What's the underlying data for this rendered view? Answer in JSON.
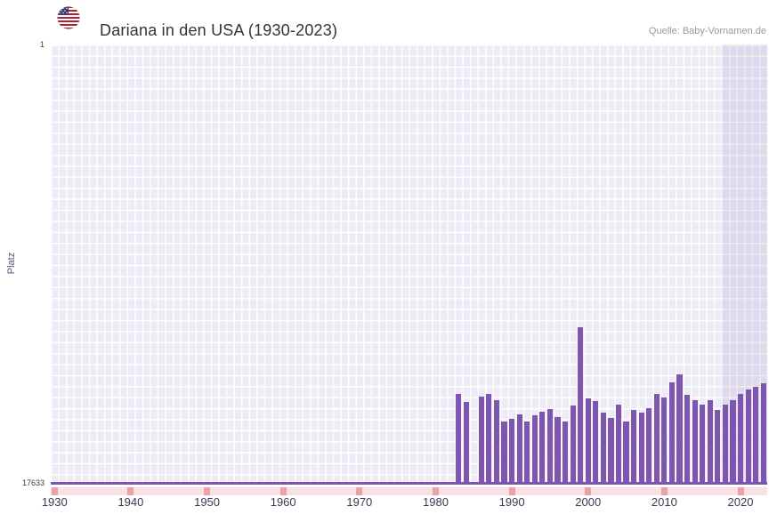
{
  "page": {
    "title": "Dariana in den USA (1930-2023)",
    "source": "Quelle: Baby-Vornamen.de"
  },
  "axes": {
    "ylabel": "Platz",
    "y_top": "1",
    "y_bottom": "17633"
  },
  "icons": {
    "flag": "us-flag-icon"
  },
  "colors": {
    "bar": "#7e55b2",
    "plot_background": "#edebf6",
    "grid": "#ffffff",
    "highlight_band": "rgba(113,94,163,0.12)",
    "baseline": "#7e55b2",
    "no_data_strip": "#f8e1e4",
    "no_data_tick": "#efa0a6",
    "title_text": "#333333",
    "source_text": "#9a9a9a",
    "axis_text": "#3b3b54",
    "ylabel_text": "#5f4b8b"
  },
  "chart_data": {
    "type": "bar",
    "title": "Dariana in den USA (1930-2023)",
    "xlabel": "",
    "ylabel": "Platz",
    "x_range": [
      1930,
      2023
    ],
    "ylim": [
      1,
      17633
    ],
    "y_inverted": true,
    "grid": true,
    "x_ticks": [
      "1930",
      "1940",
      "1950",
      "1960",
      "1970",
      "1980",
      "1990",
      "2000",
      "2010",
      "2020"
    ],
    "highlight_band_years": [
      2018,
      2023
    ],
    "note": "Rank (Platz) per year; years 1930-1982 and 1985 have no ranking (marked on bottom strip). Values estimated from plot.",
    "points": [
      {
        "year": 1983,
        "rank": 14000
      },
      {
        "year": 1984,
        "rank": 14330
      },
      {
        "year": 1986,
        "rank": 14110
      },
      {
        "year": 1987,
        "rank": 14000
      },
      {
        "year": 1988,
        "rank": 14250
      },
      {
        "year": 1989,
        "rank": 15100
      },
      {
        "year": 1990,
        "rank": 15000
      },
      {
        "year": 1991,
        "rank": 14820
      },
      {
        "year": 1992,
        "rank": 15100
      },
      {
        "year": 1993,
        "rank": 14850
      },
      {
        "year": 1994,
        "rank": 14710
      },
      {
        "year": 1995,
        "rank": 14600
      },
      {
        "year": 1996,
        "rank": 14930
      },
      {
        "year": 1997,
        "rank": 15100
      },
      {
        "year": 1998,
        "rank": 14460
      },
      {
        "year": 1999,
        "rank": 11330
      },
      {
        "year": 2000,
        "rank": 14180
      },
      {
        "year": 2001,
        "rank": 14290
      },
      {
        "year": 2002,
        "rank": 14750
      },
      {
        "year": 2003,
        "rank": 14960
      },
      {
        "year": 2004,
        "rank": 14430
      },
      {
        "year": 2005,
        "rank": 15100
      },
      {
        "year": 2006,
        "rank": 14640
      },
      {
        "year": 2007,
        "rank": 14750
      },
      {
        "year": 2008,
        "rank": 14570
      },
      {
        "year": 2009,
        "rank": 14000
      },
      {
        "year": 2010,
        "rank": 14140
      },
      {
        "year": 2011,
        "rank": 13540
      },
      {
        "year": 2012,
        "rank": 13220
      },
      {
        "year": 2013,
        "rank": 14040
      },
      {
        "year": 2014,
        "rank": 14250
      },
      {
        "year": 2015,
        "rank": 14430
      },
      {
        "year": 2016,
        "rank": 14250
      },
      {
        "year": 2017,
        "rank": 14640
      },
      {
        "year": 2018,
        "rank": 14430
      },
      {
        "year": 2019,
        "rank": 14250
      },
      {
        "year": 2020,
        "rank": 14000
      },
      {
        "year": 2021,
        "rank": 13820
      },
      {
        "year": 2022,
        "rank": 13710
      },
      {
        "year": 2023,
        "rank": 13570
      }
    ]
  }
}
